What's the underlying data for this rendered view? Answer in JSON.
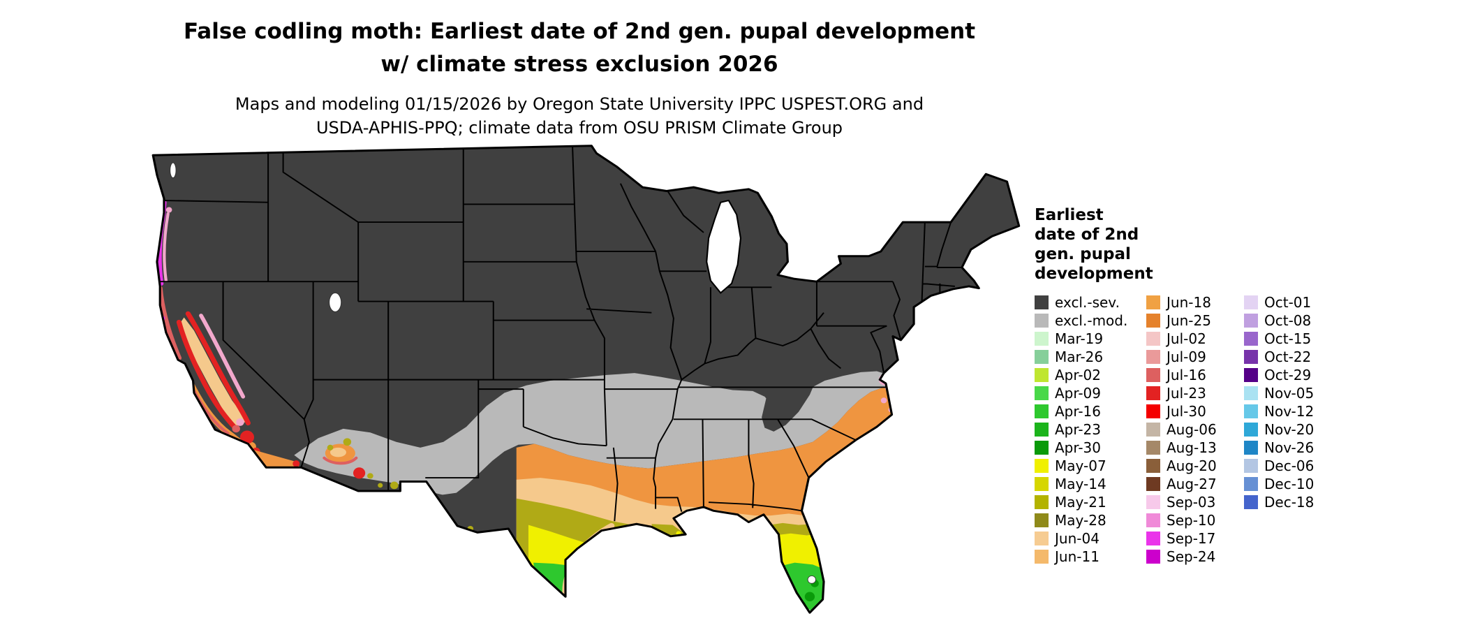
{
  "header": {
    "title_line1": "False codling moth: Earliest date of 2nd gen. pupal development",
    "title_line2": "w/ climate stress exclusion 2026",
    "subtitle_line1": "Maps and modeling 01/15/2026 by Oregon State University IPPC USPEST.ORG and",
    "subtitle_line2": "USDA-APHIS-PPQ; climate data from OSU PRISM Climate Group"
  },
  "legend": {
    "title_lines": [
      "Earliest",
      "date of 2nd",
      "gen. pupal",
      "development"
    ],
    "columns": [
      {
        "entries": [
          {
            "label": "excl.-sev.",
            "color": "#404040"
          },
          {
            "label": "excl.-mod.",
            "color": "#b9b9b9"
          },
          {
            "label": "Mar-19",
            "color": "#cdf5cd"
          },
          {
            "label": "Mar-26",
            "color": "#86cf9a"
          },
          {
            "label": "Apr-02",
            "color": "#bfe630"
          },
          {
            "label": "Apr-09",
            "color": "#49d849"
          },
          {
            "label": "Apr-16",
            "color": "#2ec82e"
          },
          {
            "label": "Apr-23",
            "color": "#1cb41c"
          },
          {
            "label": "Apr-30",
            "color": "#0a9a0a"
          },
          {
            "label": "May-07",
            "color": "#f0f000"
          },
          {
            "label": "May-14",
            "color": "#d6d600"
          },
          {
            "label": "May-21",
            "color": "#b3b300"
          },
          {
            "label": "May-28",
            "color": "#8f8a1a"
          },
          {
            "label": "Jun-04",
            "color": "#f6cc92"
          },
          {
            "label": "Jun-11",
            "color": "#f4b96b"
          }
        ]
      },
      {
        "entries": [
          {
            "label": "Jun-18",
            "color": "#f0a143"
          },
          {
            "label": "Jun-25",
            "color": "#e5822c"
          },
          {
            "label": "Jul-02",
            "color": "#f4c6c6"
          },
          {
            "label": "Jul-09",
            "color": "#ea9a9a"
          },
          {
            "label": "Jul-16",
            "color": "#dd6060"
          },
          {
            "label": "Jul-23",
            "color": "#e32222"
          },
          {
            "label": "Jul-30",
            "color": "#f40000"
          },
          {
            "label": "Aug-06",
            "color": "#c4b5a5"
          },
          {
            "label": "Aug-13",
            "color": "#a58868"
          },
          {
            "label": "Aug-20",
            "color": "#8a5f3a"
          },
          {
            "label": "Aug-27",
            "color": "#6e3a22"
          },
          {
            "label": "Sep-03",
            "color": "#f7c9ea"
          },
          {
            "label": "Sep-10",
            "color": "#f08ad8"
          },
          {
            "label": "Sep-17",
            "color": "#ea34ea"
          },
          {
            "label": "Sep-24",
            "color": "#cc00cc"
          }
        ]
      },
      {
        "entries": [
          {
            "label": "Oct-01",
            "color": "#e3d3f3"
          },
          {
            "label": "Oct-08",
            "color": "#c0a0e0"
          },
          {
            "label": "Oct-15",
            "color": "#9966cc"
          },
          {
            "label": "Oct-22",
            "color": "#7733aa"
          },
          {
            "label": "Oct-29",
            "color": "#550088"
          },
          {
            "label": "Nov-05",
            "color": "#aae2f2"
          },
          {
            "label": "Nov-12",
            "color": "#66c8e8"
          },
          {
            "label": "Nov-20",
            "color": "#2fa8d8"
          },
          {
            "label": "Nov-26",
            "color": "#1f86c6"
          },
          {
            "label": "Dec-06",
            "color": "#b3c6e3"
          },
          {
            "label": "Dec-10",
            "color": "#6690d4"
          },
          {
            "label": "Dec-18",
            "color": "#4464cc"
          }
        ]
      }
    ]
  },
  "map": {
    "palette": {
      "excl_sev": "#404040",
      "excl_mod": "#b9b9b9",
      "tan": "#f5c98c",
      "orange": "#ef9540",
      "olive": "#b0aa16",
      "yellow": "#f0f000",
      "green": "#2ec82e",
      "dkgreen": "#0a9a0a",
      "ltgreen": "#c9f2c9",
      "red": "#e32222",
      "rose": "#dd6060",
      "pink": "#f2a8cc",
      "ltpink": "#f6c6e0",
      "magenta": "#ea34ea",
      "white": "#ffffff"
    }
  }
}
